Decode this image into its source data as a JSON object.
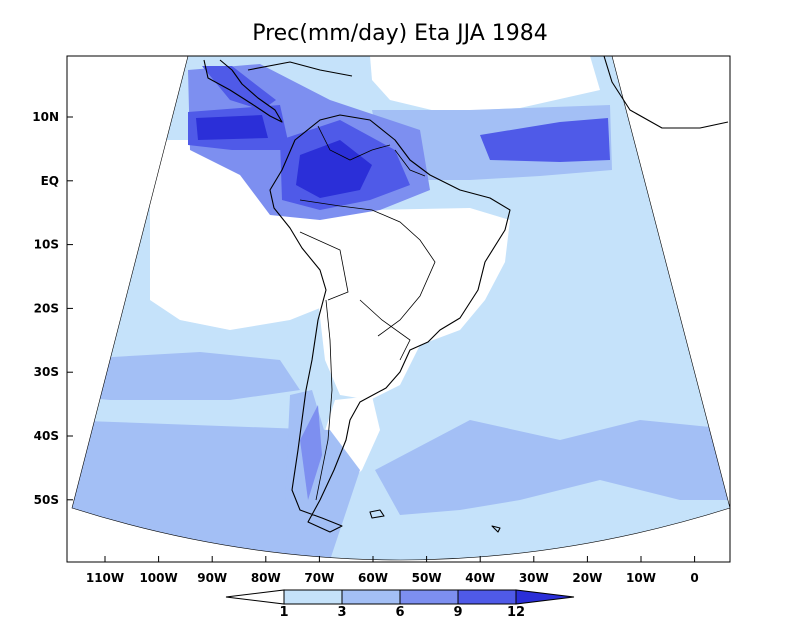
{
  "title": "Prec(mm/day) Eta JJA 1984",
  "colors": {
    "frame": "#000000",
    "none": "#ffffff",
    "l1": "#c5e2fa",
    "l2": "#a3bff5",
    "l3": "#7d8ff0",
    "l4": "#4f5ae8",
    "l5": "#2b2fd8"
  },
  "x_ticks": [
    "110W",
    "100W",
    "90W",
    "80W",
    "70W",
    "60W",
    "50W",
    "40W",
    "30W",
    "20W",
    "10W",
    "0"
  ],
  "y_ticks": [
    "10N",
    "EQ",
    "10S",
    "20S",
    "30S",
    "40S",
    "50S"
  ],
  "colorbar": {
    "labels": [
      "1",
      "3",
      "6",
      "9",
      "12"
    ]
  }
}
